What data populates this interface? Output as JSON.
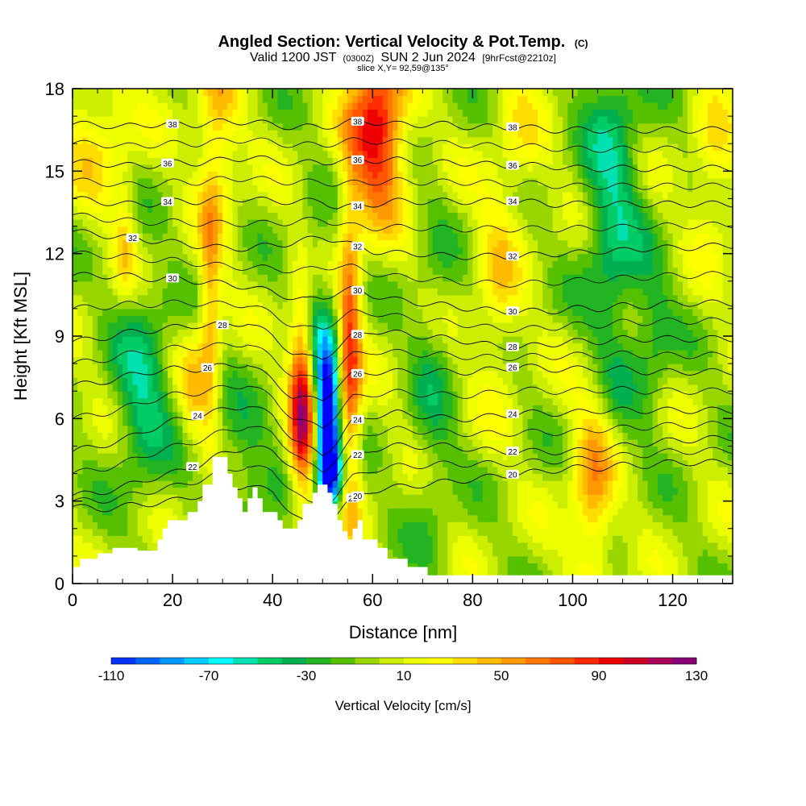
{
  "chart_data": {
    "type": "heatmap",
    "title": "Angled Section: Vertical Velocity & Pot.Temp.",
    "title_suffix": "(C)",
    "subtitle_valid": "Valid 1200 JST",
    "subtitle_utc": "(0300Z)",
    "subtitle_date": "SUN 2 Jun 2024",
    "subtitle_fcst": "[9hrFcst@2210z]",
    "slice_label": "slice X,Y= 92,59@135°",
    "xlabel": "Distance [nm]",
    "ylabel": "Height [Kft MSL]",
    "xlim": [
      0,
      132
    ],
    "ylim": [
      0,
      18
    ],
    "x_ticks": [
      0,
      20,
      40,
      60,
      80,
      100,
      120
    ],
    "y_ticks": [
      0,
      3,
      6,
      9,
      12,
      15,
      18
    ],
    "colorbar": {
      "label": "Vertical Velocity [cm/s]",
      "min": -110,
      "max": 130,
      "step": 10,
      "tick_labels": [
        -110,
        -70,
        -30,
        10,
        50,
        90,
        130
      ],
      "colors": [
        "#0000ff",
        "#0033ff",
        "#0066ff",
        "#0099ff",
        "#00ccff",
        "#00ffff",
        "#00e0b0",
        "#00cc66",
        "#00b050",
        "#22b422",
        "#55c000",
        "#99d600",
        "#ccee00",
        "#eeff00",
        "#ffff00",
        "#ffdd00",
        "#ffbb00",
        "#ff9900",
        "#ff7700",
        "#ff5500",
        "#ff2a00",
        "#ee0000",
        "#cc0022",
        "#aa0055",
        "#880077",
        "#660099"
      ]
    },
    "terrain_profile_kft": [
      [
        0,
        0.6
      ],
      [
        1.5,
        0.6
      ],
      [
        1.5,
        0.9
      ],
      [
        5,
        0.9
      ],
      [
        5,
        1.1
      ],
      [
        8,
        1.1
      ],
      [
        8,
        1.3
      ],
      [
        13,
        1.3
      ],
      [
        13,
        1.2
      ],
      [
        17,
        1.2
      ],
      [
        17,
        1.6
      ],
      [
        18,
        1.6
      ],
      [
        18,
        2.0
      ],
      [
        19,
        2.0
      ],
      [
        19,
        2.3
      ],
      [
        23,
        2.3
      ],
      [
        23,
        2.6
      ],
      [
        25,
        2.6
      ],
      [
        25,
        3.0
      ],
      [
        26,
        3.0
      ],
      [
        26,
        3.6
      ],
      [
        28,
        3.6
      ],
      [
        28,
        4.6
      ],
      [
        31,
        4.6
      ],
      [
        31,
        4.0
      ],
      [
        32,
        4.0
      ],
      [
        32,
        3.5
      ],
      [
        33,
        3.5
      ],
      [
        33,
        3.1
      ],
      [
        34,
        3.1
      ],
      [
        34,
        2.6
      ],
      [
        35,
        2.6
      ],
      [
        35,
        3.1
      ],
      [
        36,
        3.1
      ],
      [
        36,
        3.5
      ],
      [
        37,
        3.5
      ],
      [
        37,
        3.1
      ],
      [
        38,
        3.1
      ],
      [
        38,
        2.6
      ],
      [
        41,
        2.6
      ],
      [
        41,
        2.3
      ],
      [
        42,
        2.3
      ],
      [
        42,
        2.0
      ],
      [
        45,
        2.0
      ],
      [
        45,
        2.3
      ],
      [
        46,
        2.3
      ],
      [
        46,
        2.9
      ],
      [
        48,
        2.9
      ],
      [
        48,
        3.3
      ],
      [
        49,
        3.3
      ],
      [
        49,
        3.6
      ],
      [
        51,
        3.6
      ],
      [
        51,
        3.3
      ],
      [
        52,
        3.3
      ],
      [
        52,
        2.9
      ],
      [
        53,
        2.9
      ],
      [
        53,
        2.3
      ],
      [
        54,
        2.3
      ],
      [
        54,
        1.9
      ],
      [
        55,
        1.9
      ],
      [
        55,
        1.6
      ],
      [
        56,
        1.6
      ],
      [
        56,
        2.0
      ],
      [
        57,
        2.0
      ],
      [
        57,
        2.3
      ],
      [
        58,
        2.3
      ],
      [
        58,
        1.6
      ],
      [
        61,
        1.6
      ],
      [
        61,
        1.3
      ],
      [
        63,
        1.3
      ],
      [
        63,
        0.9
      ],
      [
        67,
        0.9
      ],
      [
        67,
        0.6
      ],
      [
        71,
        0.6
      ],
      [
        71,
        0.3
      ],
      [
        132,
        0.3
      ],
      [
        132,
        0
      ]
    ],
    "theta_contours": [
      {
        "value": 20,
        "label_x": 56,
        "y": [
          2.8,
          2.7,
          2.8,
          2.9,
          3.0,
          3.2,
          3.4,
          3.6,
          3.3,
          2.6,
          2.1,
          2.0,
          2.6,
          3.1,
          3.4,
          3.5,
          3.6,
          3.7,
          3.8,
          3.9,
          4.0,
          4.1,
          4.2,
          4.2,
          4.3,
          4.3,
          4.4,
          4.4
        ]
      },
      {
        "value": 22,
        "label_x": 24,
        "y": [
          3.2,
          3.3,
          3.5,
          3.8,
          4.0,
          4.3,
          4.7,
          5.0,
          4.8,
          4.3,
          3.7,
          3.5,
          4.0,
          4.6,
          4.9,
          5.0,
          5.0,
          5.0,
          4.9,
          4.8,
          4.8,
          4.8,
          4.8,
          4.9,
          5.0,
          5.1,
          5.2,
          5.3
        ]
      },
      {
        "value": 24,
        "label_x": 25,
        "y": [
          4.8,
          5.0,
          5.2,
          5.6,
          5.9,
          6.1,
          6.3,
          6.5,
          6.1,
          5.3,
          4.9,
          4.7,
          5.2,
          5.9,
          6.1,
          6.2,
          6.1,
          6.0,
          6.0,
          6.1,
          6.2,
          6.2,
          6.2,
          6.3,
          6.3,
          6.3,
          6.3,
          6.3
        ]
      },
      {
        "value": 26,
        "label_x": 27,
        "y": [
          7.2,
          7.3,
          7.5,
          7.7,
          7.8,
          7.8,
          7.9,
          8.0,
          7.4,
          6.8,
          6.7,
          6.7,
          7.2,
          7.6,
          7.7,
          7.7,
          7.7,
          7.7,
          7.7,
          7.8,
          7.9,
          7.8,
          7.8,
          7.8,
          7.8,
          7.7,
          7.7,
          7.7
        ]
      },
      {
        "value": 28,
        "label_x": 30,
        "y": [
          8.8,
          8.9,
          9.1,
          9.2,
          9.3,
          9.4,
          9.4,
          9.5,
          9.0,
          8.4,
          8.2,
          8.2,
          8.6,
          9.0,
          9.2,
          9.1,
          9.0,
          8.9,
          8.8,
          8.6,
          8.6,
          8.7,
          8.8,
          8.8,
          8.9,
          8.9,
          8.9,
          8.9
        ]
      },
      {
        "value": 30,
        "label_x": 20,
        "y": [
          11.2,
          11.2,
          11.2,
          11.1,
          11.1,
          11.0,
          10.9,
          10.8,
          10.6,
          10.4,
          10.3,
          10.4,
          10.6,
          10.7,
          10.5,
          10.3,
          10.2,
          10.1,
          10.0,
          9.9,
          9.9,
          9.9,
          10.0,
          10.0,
          10.1,
          10.1,
          10.2,
          10.2
        ]
      },
      {
        "value": 32,
        "label_x": 12,
        "y": [
          12.8,
          12.7,
          12.6,
          12.5,
          12.4,
          12.3,
          12.2,
          12.2,
          12.3,
          12.4,
          12.5,
          12.6,
          12.5,
          12.3,
          12.1,
          12.0,
          12.0,
          11.9,
          11.9,
          11.9,
          11.9,
          12.0,
          12.0,
          12.1,
          12.1,
          12.2,
          12.2,
          12.3
        ]
      },
      {
        "value": 34,
        "label_x": 19,
        "y": [
          14.0,
          13.9,
          13.8,
          13.8,
          13.9,
          13.9,
          14.0,
          14.0,
          13.9,
          13.9,
          13.9,
          13.9,
          13.7,
          13.7,
          13.8,
          13.9,
          13.9,
          13.9,
          13.9,
          13.9,
          13.9,
          13.8,
          13.8,
          13.8,
          13.8,
          13.8,
          13.8,
          13.8
        ]
      },
      {
        "value": 36,
        "label_x": 19,
        "y": [
          15.3,
          15.3,
          15.2,
          15.2,
          15.3,
          15.3,
          15.4,
          15.5,
          15.4,
          15.3,
          15.3,
          15.3,
          15.4,
          15.4,
          15.4,
          15.4,
          15.3,
          15.3,
          15.3,
          15.2,
          15.2,
          15.2,
          15.1,
          15.1,
          15.1,
          15.1,
          15.1,
          15.1
        ]
      },
      {
        "value": 38,
        "label_x": 20,
        "y": [
          16.7,
          16.7,
          16.6,
          16.7,
          16.7,
          16.7,
          16.8,
          16.8,
          16.7,
          16.6,
          16.6,
          16.6,
          16.7,
          16.8,
          16.8,
          16.7,
          16.7,
          16.7,
          16.6,
          16.6,
          16.6,
          16.5,
          16.5,
          16.5,
          16.5,
          16.5,
          16.5,
          16.5
        ]
      }
    ],
    "contour_x": [
      0,
      5,
      10,
      15,
      20,
      25,
      30,
      35,
      40,
      44,
      47,
      50,
      53,
      56,
      60,
      65,
      70,
      75,
      80,
      85,
      90,
      95,
      100,
      105,
      110,
      115,
      120,
      132
    ],
    "velocity_features": [
      {
        "x": 46,
        "y": 6.5,
        "sx": 1.8,
        "sy": 2.5,
        "amp": 110
      },
      {
        "x": 55.5,
        "y": 8.0,
        "sx": 1.6,
        "sy": 4.0,
        "amp": 80
      },
      {
        "x": 61,
        "y": 16.5,
        "sx": 4.0,
        "sy": 2.2,
        "amp": 100
      },
      {
        "x": 51,
        "y": 5.8,
        "sx": 1.6,
        "sy": 2.5,
        "amp": -140
      },
      {
        "x": 52.5,
        "y": 4.0,
        "sx": 2.0,
        "sy": 0.8,
        "amp": -60
      },
      {
        "x": 27.5,
        "y": 9.5,
        "sx": 1.5,
        "sy": 3.5,
        "amp": 50
      },
      {
        "x": 24,
        "y": 7.0,
        "sx": 1.8,
        "sy": 1.6,
        "amp": 30
      },
      {
        "x": 29,
        "y": 16.5,
        "sx": 3.0,
        "sy": 2.5,
        "amp": 40
      },
      {
        "x": 10.5,
        "y": 12.5,
        "sx": 1.5,
        "sy": 1.5,
        "amp": 30
      },
      {
        "x": 5,
        "y": 16.5,
        "sx": 5.0,
        "sy": 2.0,
        "amp": 30
      },
      {
        "x": 104,
        "y": 3.5,
        "sx": 3.0,
        "sy": 2.5,
        "amp": 55
      },
      {
        "x": 108,
        "y": 14.0,
        "sx": 4.0,
        "sy": 5.0,
        "amp": -45
      },
      {
        "x": 116,
        "y": 9.0,
        "sx": 3.0,
        "sy": 2.0,
        "amp": -25
      },
      {
        "x": 14,
        "y": 7.0,
        "sx": 4.0,
        "sy": 2.5,
        "amp": -45
      },
      {
        "x": 33,
        "y": 4.0,
        "sx": 5.0,
        "sy": 2.0,
        "amp": -25
      },
      {
        "x": 48,
        "y": 9.5,
        "sx": 1.5,
        "sy": 2.5,
        "amp": -30
      },
      {
        "x": 72,
        "y": 6.0,
        "sx": 3.0,
        "sy": 5.0,
        "amp": -20
      },
      {
        "x": 85,
        "y": 11.0,
        "sx": 3.0,
        "sy": 3.0,
        "amp": 30
      },
      {
        "x": 90,
        "y": 16.0,
        "sx": 3.0,
        "sy": 2.0,
        "amp": 20
      },
      {
        "x": 128,
        "y": 15.0,
        "sx": 3.0,
        "sy": 2.0,
        "amp": 30
      }
    ]
  }
}
